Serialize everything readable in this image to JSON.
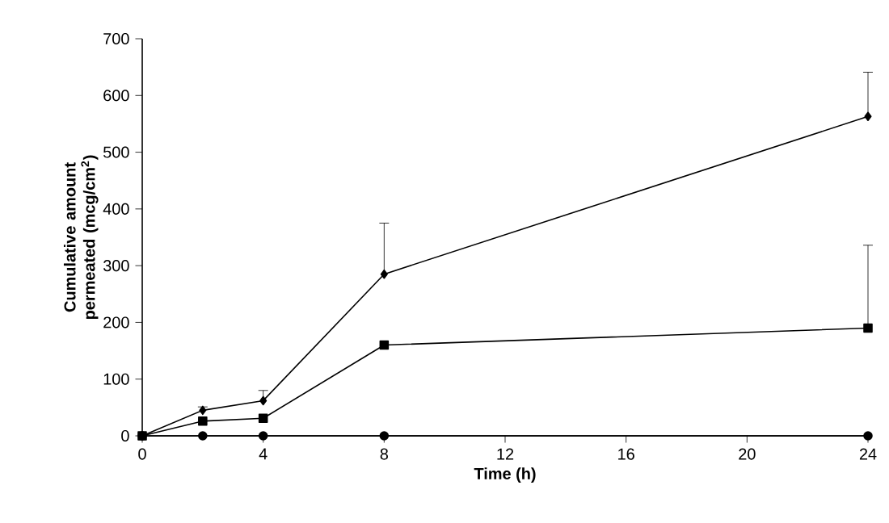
{
  "chart_data": {
    "type": "line",
    "xlabel": "Time (h)",
    "ylabel": "Cumulative amount permeated (mcg/cm$^{2}$)",
    "x": [
      0,
      2,
      4,
      8,
      24
    ],
    "series": [
      {
        "color": "#000000",
        "marker": "diamond",
        "values": [
          0,
          45,
          62,
          285,
          563
        ],
        "errors": [
          null,
          6,
          18,
          90,
          78
        ]
      },
      {
        "color": "#000000",
        "marker": "square",
        "values": [
          0,
          26,
          31,
          160,
          190
        ],
        "errors": [
          null,
          null,
          null,
          null,
          146
        ]
      },
      {
        "color": "#000000",
        "marker": "circle",
        "values": [
          0,
          0,
          0,
          0,
          0
        ]
      }
    ],
    "xlim": [
      0,
      24
    ],
    "xticks": [
      0,
      4,
      8,
      12,
      16,
      20,
      24
    ],
    "ylim": [
      0,
      700
    ],
    "yticks": [
      0,
      100,
      200,
      300,
      400,
      500,
      600,
      700
    ],
    "line_style": "solid",
    "grid": false
  }
}
